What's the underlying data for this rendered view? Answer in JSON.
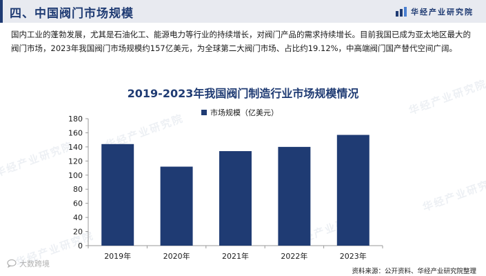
{
  "header": {
    "section_title": "四、中国阀门市场规模",
    "logo_text": "华经产业研究院"
  },
  "intro_text": "国内工业的蓬勃发展，尤其是石油化工、能源电力等行业的持续增长，对阀门产品的需求持续增长。目前我国已成为亚太地区最大的阀门市场，2023年我国阀门市场规模约157亿美元，为全球第二大阀门市场、占比约19.12%，中高端阀门国产替代空间广阔。",
  "watermark_text": "华经产业研究院",
  "corner_mark_text": "大数跨境",
  "source_text": "资料来源：公开资料、华经产业研究院整理",
  "colors": {
    "bar": "#1f3b73",
    "accent": "#1f3b73"
  },
  "chart_data": {
    "type": "bar",
    "title": "2019-2023年我国阀门制造行业市场规模情况",
    "categories": [
      "2019年",
      "2020年",
      "2021年",
      "2022年",
      "2023年"
    ],
    "series": [
      {
        "name": "市场规模（亿美元）",
        "values": [
          144,
          112,
          134,
          140,
          157
        ]
      }
    ],
    "ylim": [
      0,
      180
    ],
    "yticks": [
      0,
      20,
      40,
      60,
      80,
      100,
      120,
      140,
      160,
      180
    ],
    "legend_position": "top-center",
    "grid": false
  }
}
